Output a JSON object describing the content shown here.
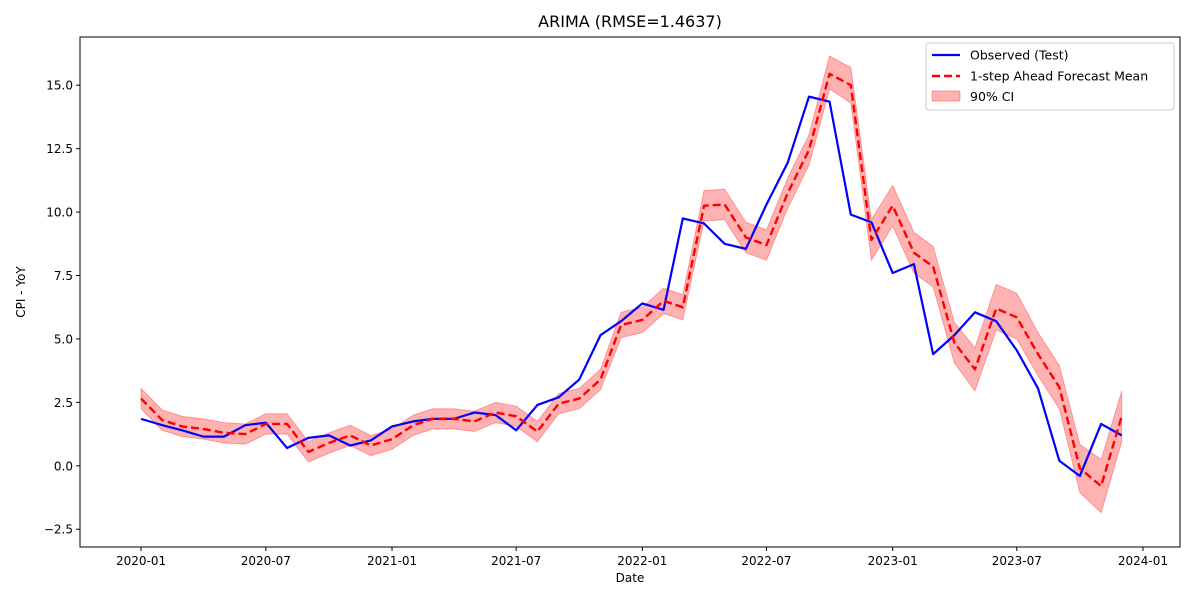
{
  "chart_data": {
    "type": "line",
    "title": "ARIMA (RMSE=1.4637)",
    "xlabel": "Date",
    "ylabel": "CPI - YoY",
    "xlim": [
      "2019-10-04",
      "2024-02-24"
    ],
    "ylim": [
      -3.2,
      16.9
    ],
    "x_ticks": [
      "2020-01",
      "2020-07",
      "2021-01",
      "2021-07",
      "2022-01",
      "2022-07",
      "2023-01",
      "2023-07",
      "2024-01"
    ],
    "y_ticks": [
      -2.5,
      0.0,
      2.5,
      5.0,
      7.5,
      10.0,
      12.5,
      15.0
    ],
    "y_tick_labels": [
      "−2.5",
      "0.0",
      "2.5",
      "5.0",
      "7.5",
      "10.0",
      "12.5",
      "15.0"
    ],
    "grid": false,
    "legend_position": "top-right",
    "x": [
      "2020-01-01",
      "2020-02-01",
      "2020-03-01",
      "2020-04-01",
      "2020-05-01",
      "2020-06-01",
      "2020-07-01",
      "2020-08-01",
      "2020-09-01",
      "2020-10-01",
      "2020-11-01",
      "2020-12-01",
      "2021-01-01",
      "2021-02-01",
      "2021-03-01",
      "2021-04-01",
      "2021-05-01",
      "2021-06-01",
      "2021-07-01",
      "2021-08-01",
      "2021-09-01",
      "2021-10-01",
      "2021-11-01",
      "2021-12-01",
      "2022-01-01",
      "2022-02-01",
      "2022-03-01",
      "2022-04-01",
      "2022-05-01",
      "2022-06-01",
      "2022-07-01",
      "2022-08-01",
      "2022-09-01",
      "2022-10-01",
      "2022-11-01",
      "2022-12-01",
      "2023-01-01",
      "2023-02-01",
      "2023-03-01",
      "2023-04-01",
      "2023-05-01",
      "2023-06-01",
      "2023-07-01",
      "2023-08-01",
      "2023-09-01",
      "2023-10-01",
      "2023-11-01",
      "2023-12-01"
    ],
    "series": [
      {
        "name": "Observed (Test)",
        "color": "#0000ff",
        "style": "solid",
        "values": [
          1.85,
          1.6,
          1.4,
          1.15,
          1.15,
          1.6,
          1.7,
          0.7,
          1.1,
          1.2,
          0.8,
          1.0,
          1.55,
          1.75,
          1.85,
          1.85,
          2.1,
          2.0,
          1.4,
          2.4,
          2.7,
          3.4,
          5.15,
          5.7,
          6.4,
          6.15,
          9.75,
          9.55,
          8.75,
          8.55,
          10.3,
          11.95,
          14.55,
          14.35,
          9.9,
          9.6,
          7.6,
          7.95,
          4.4,
          5.15,
          6.05,
          5.7,
          4.55,
          3.05,
          0.2,
          -0.4,
          1.65,
          1.2
        ]
      },
      {
        "name": "1-step Ahead Forecast Mean",
        "color": "#ff0000",
        "style": "dashed",
        "values": [
          2.65,
          1.8,
          1.55,
          1.45,
          1.3,
          1.25,
          1.65,
          1.65,
          0.55,
          0.9,
          1.2,
          0.8,
          1.05,
          1.6,
          1.85,
          1.85,
          1.75,
          2.1,
          1.95,
          1.35,
          2.45,
          2.65,
          3.4,
          5.55,
          5.75,
          6.5,
          6.25,
          10.25,
          10.3,
          9.0,
          8.7,
          10.75,
          12.45,
          15.45,
          15.0,
          8.9,
          10.25,
          8.4,
          7.85,
          4.85,
          3.8,
          6.2,
          5.85,
          4.4,
          3.1,
          -0.1,
          -0.8,
          1.95
        ]
      }
    ],
    "interval": {
      "name": "90% CI",
      "color": "#ff0000",
      "opacity": 0.3,
      "lower": [
        2.25,
        1.4,
        1.15,
        1.05,
        0.9,
        0.85,
        1.25,
        1.25,
        0.15,
        0.5,
        0.8,
        0.4,
        0.65,
        1.2,
        1.45,
        1.45,
        1.35,
        1.7,
        1.55,
        0.95,
        2.05,
        2.25,
        3.0,
        5.05,
        5.25,
        6.0,
        5.75,
        9.65,
        9.7,
        8.4,
        8.1,
        10.15,
        11.85,
        14.85,
        14.3,
        8.1,
        9.45,
        7.6,
        7.05,
        4.05,
        2.95,
        5.35,
        5.0,
        3.55,
        2.25,
        -1.05,
        -1.85,
        0.95
      ],
      "upper": [
        3.05,
        2.2,
        1.95,
        1.85,
        1.7,
        1.65,
        2.05,
        2.05,
        0.95,
        1.3,
        1.6,
        1.2,
        1.45,
        2.0,
        2.25,
        2.25,
        2.15,
        2.5,
        2.35,
        1.75,
        2.85,
        3.05,
        3.8,
        6.05,
        6.25,
        7.0,
        6.75,
        10.85,
        10.9,
        9.6,
        9.3,
        11.35,
        13.05,
        16.15,
        15.7,
        9.7,
        11.05,
        9.2,
        8.65,
        5.65,
        4.65,
        7.15,
        6.8,
        5.25,
        3.95,
        0.85,
        0.25,
        2.95
      ]
    }
  }
}
